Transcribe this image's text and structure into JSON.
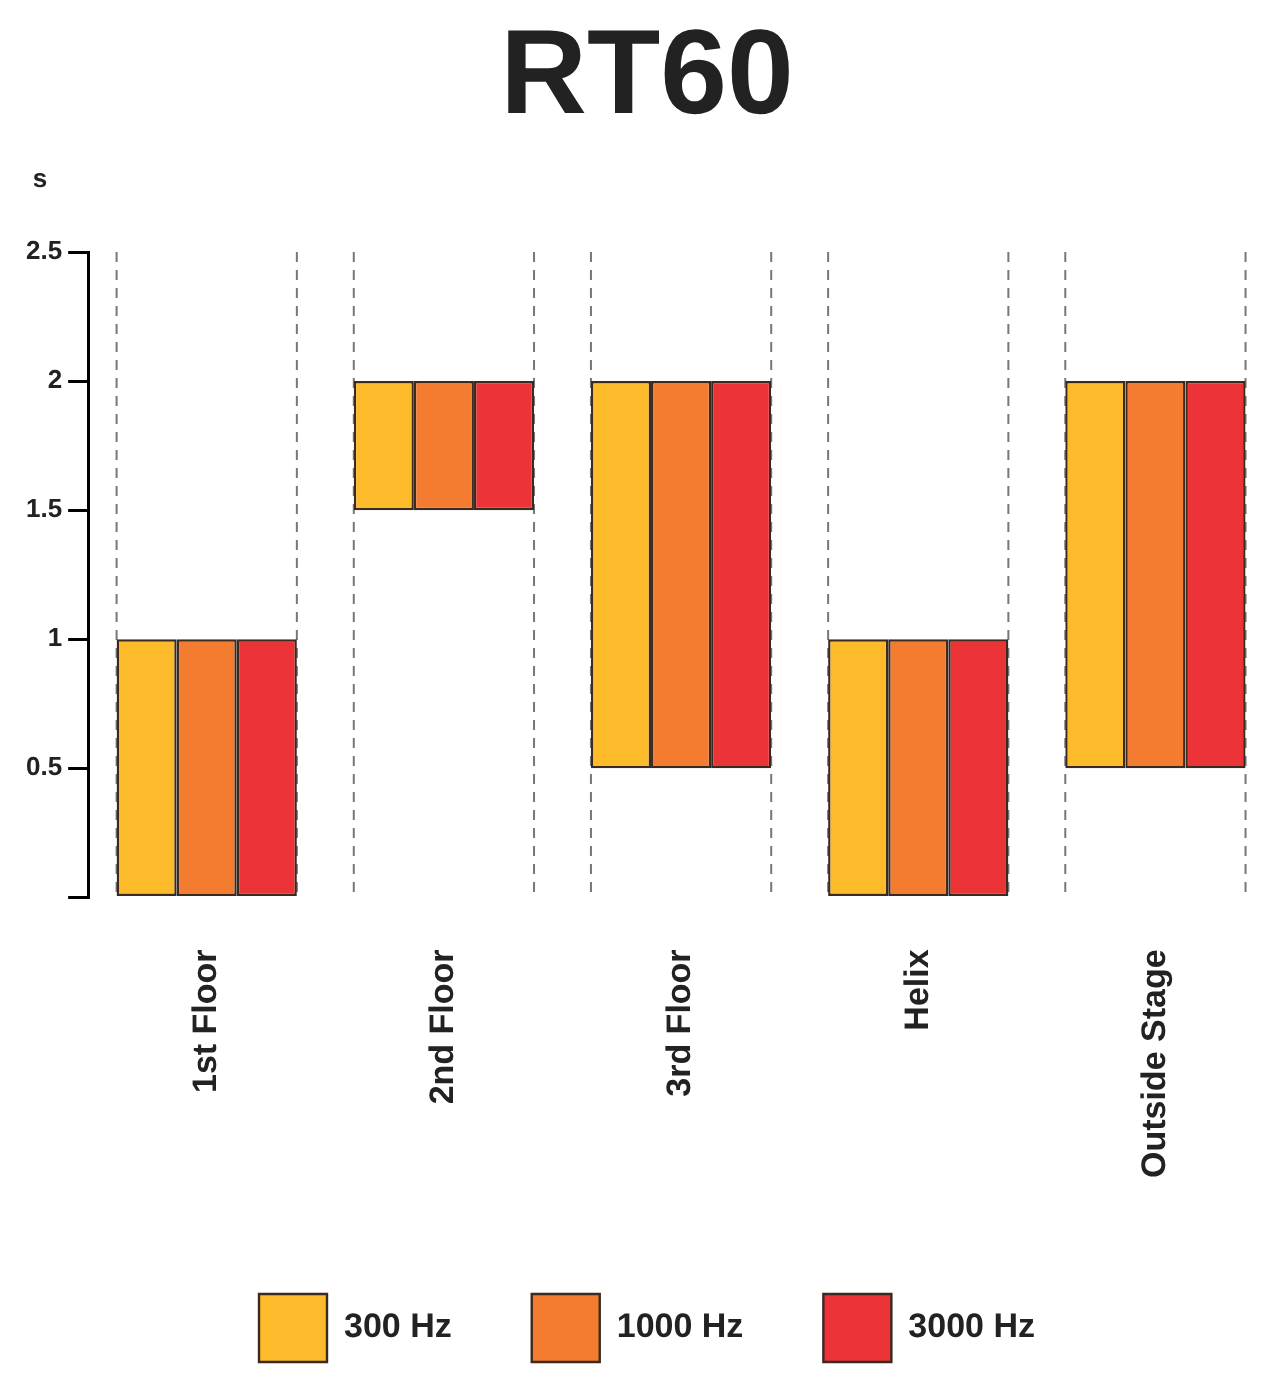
{
  "chart_data": {
    "type": "bar",
    "title": "RT60",
    "ylabel": "s",
    "categories": [
      "1st Floor",
      "2nd Floor",
      "3rd Floor",
      "Helix",
      "Outside Stage"
    ],
    "series": [
      {
        "name": "300 Hz",
        "color": "#fdba2a",
        "values": [
          1,
          0.5,
          1.5,
          1,
          1.5
        ],
        "base": [
          0,
          1.5,
          0.5,
          0,
          0.5
        ]
      },
      {
        "name": "1000 Hz",
        "color": "#f47c30",
        "values": [
          1,
          0.5,
          1.5,
          1,
          1.5
        ],
        "base": [
          0,
          1.5,
          0.5,
          0,
          0.5
        ]
      },
      {
        "name": "3000 Hz",
        "color": "#ec3338",
        "values": [
          1,
          0.5,
          1.5,
          1,
          1.5
        ],
        "base": [
          0,
          1.5,
          0.5,
          0,
          0.5
        ]
      }
    ],
    "ylim": [
      0,
      2.5
    ],
    "yticks": [
      {
        "value": 0,
        "label": null
      },
      0.5,
      1,
      1.5,
      2,
      2.5
    ],
    "grid": "x",
    "legend": "bottom"
  }
}
